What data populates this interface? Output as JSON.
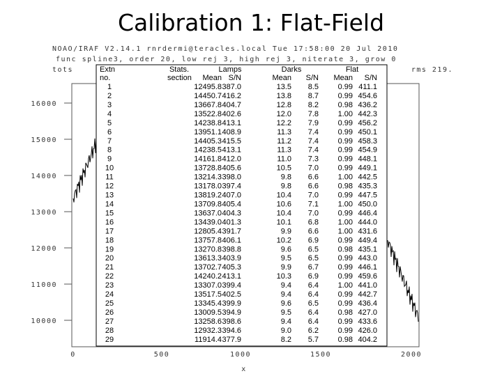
{
  "title": "Calibration 1: Flat-Field",
  "plot": {
    "header": [
      "NOAO/IRAF V2.14.1 rnrdermi@teracles.local Tue 17:58:00 20 Jul 2010",
      "func spline3, order 20, low rej 3, high rej 3, niterate 3, grow 0",
      "tots",
      "rms 219."
    ],
    "yticks": [
      "16000",
      "15000",
      "14000",
      "13000",
      "12000",
      "11000",
      "10000"
    ],
    "xticks": [
      "0",
      "500",
      "1000",
      "1500",
      "2000"
    ],
    "xlabel": "x"
  },
  "table": {
    "group_headers": [
      "Extn",
      "Stats.",
      "Lamps",
      "Darks",
      "Flat"
    ],
    "sub_headers": [
      "no.",
      "section",
      "Mean",
      "S/N",
      "Mean",
      "S/N",
      "Mean",
      "S/N"
    ],
    "rows": [
      [
        "1",
        "12495.8",
        "387.0",
        "13.5",
        "8.5",
        "0.99",
        "411.1"
      ],
      [
        "2",
        "14450.7",
        "416.2",
        "13.8",
        "8.7",
        "0.99",
        "454.6"
      ],
      [
        "3",
        "13667.8",
        "404.7",
        "12.8",
        "8.2",
        "0.98",
        "436.2"
      ],
      [
        "4",
        "13522.8",
        "402.6",
        "12.0",
        "7.8",
        "1.00",
        "442.3"
      ],
      [
        "5",
        "14238.8",
        "413.1",
        "12.2",
        "7.9",
        "0.99",
        "456.2"
      ],
      [
        "6",
        "13951.1",
        "408.9",
        "11.3",
        "7.4",
        "0.99",
        "450.1"
      ],
      [
        "7",
        "14405.3",
        "415.5",
        "11.2",
        "7.4",
        "0.99",
        "458.3"
      ],
      [
        "8",
        "14238.5",
        "413.1",
        "11.3",
        "7.4",
        "0.99",
        "454.9"
      ],
      [
        "9",
        "14161.8",
        "412.0",
        "11.0",
        "7.3",
        "0.99",
        "448.1"
      ],
      [
        "10",
        "13728.8",
        "405.6",
        "10.5",
        "7.0",
        "0.99",
        "449.1"
      ],
      [
        "11",
        "13214.3",
        "398.0",
        "9.8",
        "6.6",
        "1.00",
        "442.5"
      ],
      [
        "12",
        "13178.0",
        "397.4",
        "9.8",
        "6.6",
        "0.98",
        "435.3"
      ],
      [
        "13",
        "13819.2",
        "407.0",
        "10.4",
        "7.0",
        "0.99",
        "447.5"
      ],
      [
        "14",
        "13709.8",
        "405.4",
        "10.6",
        "7.1",
        "1.00",
        "450.0"
      ],
      [
        "15",
        "13637.0",
        "404.3",
        "10.4",
        "7.0",
        "0.99",
        "446.4"
      ],
      [
        "16",
        "13439.0",
        "401.3",
        "10.1",
        "6.8",
        "1.00",
        "444.0"
      ],
      [
        "17",
        "12805.4",
        "391.7",
        "9.9",
        "6.6",
        "1.00",
        "431.6"
      ],
      [
        "18",
        "13757.8",
        "406.1",
        "10.2",
        "6.9",
        "0.99",
        "449.4"
      ],
      [
        "19",
        "13270.8",
        "398.8",
        "9.6",
        "6.5",
        "0.98",
        "435.1"
      ],
      [
        "20",
        "13613.3",
        "403.9",
        "9.5",
        "6.5",
        "0.99",
        "443.0"
      ],
      [
        "21",
        "13702.7",
        "405.3",
        "9.9",
        "6.7",
        "0.99",
        "446.1"
      ],
      [
        "22",
        "14240.2",
        "413.1",
        "10.3",
        "6.9",
        "0.99",
        "459.6"
      ],
      [
        "23",
        "13307.0",
        "399.4",
        "9.4",
        "6.4",
        "1.00",
        "441.0"
      ],
      [
        "24",
        "13517.5",
        "402.5",
        "9.4",
        "6.4",
        "0.99",
        "442.7"
      ],
      [
        "25",
        "13345.4",
        "399.9",
        "9.6",
        "6.5",
        "0.99",
        "436.4"
      ],
      [
        "26",
        "13009.5",
        "394.9",
        "9.5",
        "6.4",
        "0.98",
        "427.0"
      ],
      [
        "27",
        "13258.6",
        "398.6",
        "9.4",
        "6.4",
        "0.99",
        "433.6"
      ],
      [
        "28",
        "12932.3",
        "394.6",
        "9.0",
        "6.2",
        "0.99",
        "426.0"
      ],
      [
        "29",
        "11914.4",
        "377.9",
        "8.2",
        "5.7",
        "0.98",
        "404.2"
      ]
    ]
  }
}
